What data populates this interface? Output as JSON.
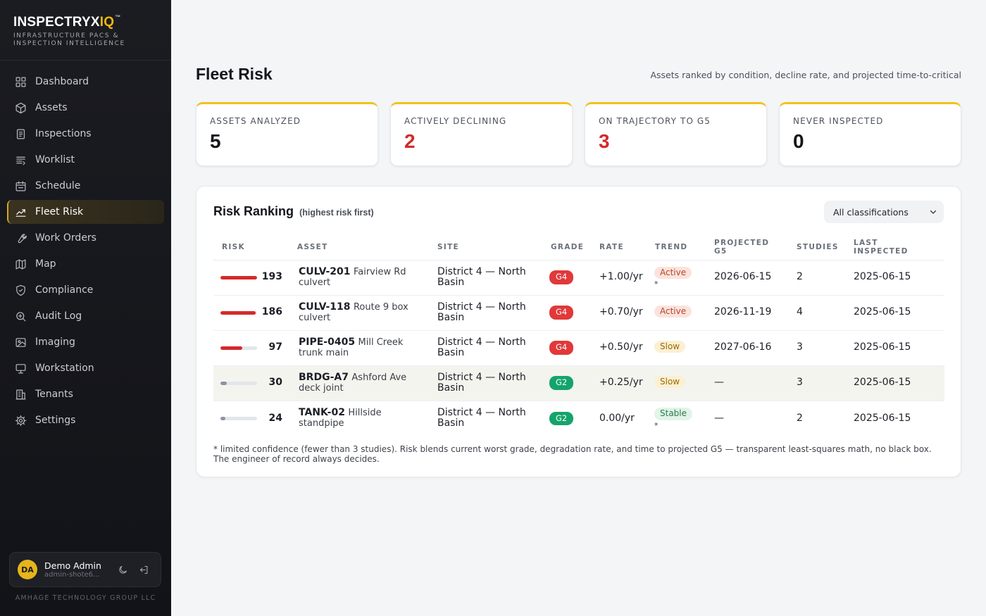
{
  "brand": {
    "name_main": "INSPECTRYX",
    "name_accent": "IQ",
    "tm": "™",
    "subtitle": "INFRASTRUCTURE PACS & INSPECTION INTELLIGENCE"
  },
  "nav": [
    {
      "label": "Dashboard",
      "icon": "dashboard-icon",
      "active": false
    },
    {
      "label": "Assets",
      "icon": "cube-icon",
      "active": false
    },
    {
      "label": "Inspections",
      "icon": "document-icon",
      "active": false
    },
    {
      "label": "Worklist",
      "icon": "list-icon",
      "active": false
    },
    {
      "label": "Schedule",
      "icon": "calendar-icon",
      "active": false
    },
    {
      "label": "Fleet Risk",
      "icon": "trend-icon",
      "active": true
    },
    {
      "label": "Work Orders",
      "icon": "wrench-icon",
      "active": false
    },
    {
      "label": "Map",
      "icon": "map-icon",
      "active": false
    },
    {
      "label": "Compliance",
      "icon": "shield-icon",
      "active": false
    },
    {
      "label": "Audit Log",
      "icon": "search-icon",
      "active": false
    },
    {
      "label": "Imaging",
      "icon": "image-icon",
      "active": false
    },
    {
      "label": "Workstation",
      "icon": "monitor-icon",
      "active": false
    },
    {
      "label": "Tenants",
      "icon": "building-icon",
      "active": false
    },
    {
      "label": "Settings",
      "icon": "gear-icon",
      "active": false
    }
  ],
  "user": {
    "initials": "DA",
    "name": "Demo Admin",
    "email": "admin-shote6..."
  },
  "footer_company": "AMHAGE TECHNOLOGY GROUP LLC",
  "page": {
    "title": "Fleet Risk",
    "description": "Assets ranked by condition, decline rate, and projected time-to-critical"
  },
  "kpis": [
    {
      "label": "ASSETS ANALYZED",
      "value": "5",
      "highlight": false
    },
    {
      "label": "ACTIVELY DECLINING",
      "value": "2",
      "highlight": true
    },
    {
      "label": "ON TRAJECTORY TO G5",
      "value": "3",
      "highlight": true
    },
    {
      "label": "NEVER INSPECTED",
      "value": "0",
      "highlight": false
    }
  ],
  "ranking": {
    "title": "Risk Ranking",
    "subtitle": "(highest risk first)",
    "filter_value": "All classifications",
    "columns": [
      "RISK",
      "ASSET",
      "SITE",
      "GRADE",
      "RATE",
      "TREND",
      "PROJECTED G5",
      "STUDIES",
      "LAST INSPECTED"
    ],
    "rows": [
      {
        "risk": "193",
        "risk_fraction": 1.0,
        "bar_color": "#d42a2a",
        "asset_id": "CULV-201",
        "asset_name": "Fairview Rd culvert",
        "site": "District 4 — North Basin",
        "grade": "G4",
        "grade_color": "#e0393a",
        "rate": "+1.00/yr",
        "trend": "Active",
        "trend_bg": "#fbe3dd",
        "trend_color": "#b8442b",
        "limited": "*",
        "projected": "2026-06-15",
        "studies": "2",
        "last": "2025-06-15",
        "highlight": false
      },
      {
        "risk": "186",
        "risk_fraction": 0.96,
        "bar_color": "#d42a2a",
        "asset_id": "CULV-118",
        "asset_name": "Route 9 box culvert",
        "site": "District 4 — North Basin",
        "grade": "G4",
        "grade_color": "#e0393a",
        "rate": "+0.70/yr",
        "trend": "Active",
        "trend_bg": "#fbe3dd",
        "trend_color": "#b8442b",
        "limited": "",
        "projected": "2026-11-19",
        "studies": "4",
        "last": "2025-06-15",
        "highlight": false
      },
      {
        "risk": "97",
        "risk_fraction": 0.6,
        "bar_color": "#d42a2a",
        "asset_id": "PIPE-0405",
        "asset_name": "Mill Creek trunk main",
        "site": "District 4 — North Basin",
        "grade": "G4",
        "grade_color": "#e0393a",
        "rate": "+0.50/yr",
        "trend": "Slow",
        "trend_bg": "#fbf0d1",
        "trend_color": "#9a6a0a",
        "limited": "",
        "projected": "2027-06-16",
        "studies": "3",
        "last": "2025-06-15",
        "highlight": false
      },
      {
        "risk": "30",
        "risk_fraction": 0.17,
        "bar_color": "#8a94a3",
        "asset_id": "BRDG-A7",
        "asset_name": "Ashford Ave deck joint",
        "site": "District 4 — North Basin",
        "grade": "G2",
        "grade_color": "#14a46b",
        "rate": "+0.25/yr",
        "trend": "Slow",
        "trend_bg": "#fbf0d1",
        "trend_color": "#9a6a0a",
        "limited": "",
        "projected": "—",
        "studies": "3",
        "last": "2025-06-15",
        "highlight": true
      },
      {
        "risk": "24",
        "risk_fraction": 0.13,
        "bar_color": "#8a94a3",
        "asset_id": "TANK-02",
        "asset_name": "Hillside standpipe",
        "site": "District 4 — North Basin",
        "grade": "G2",
        "grade_color": "#14a46b",
        "rate": "0.00/yr",
        "trend": "Stable",
        "trend_bg": "#e1f4e8",
        "trend_color": "#2b7a4b",
        "limited": "*",
        "projected": "—",
        "studies": "2",
        "last": "2025-06-15",
        "highlight": false
      }
    ],
    "footnote": "* limited confidence (fewer than 3 studies). Risk blends current worst grade, degradation rate, and time to projected G5 — transparent least-squares math, no black box. The engineer of record always decides."
  },
  "colors": {
    "accent": "#f2c21b",
    "danger": "#d42a2a",
    "sidebar_bg": "#16171c"
  }
}
